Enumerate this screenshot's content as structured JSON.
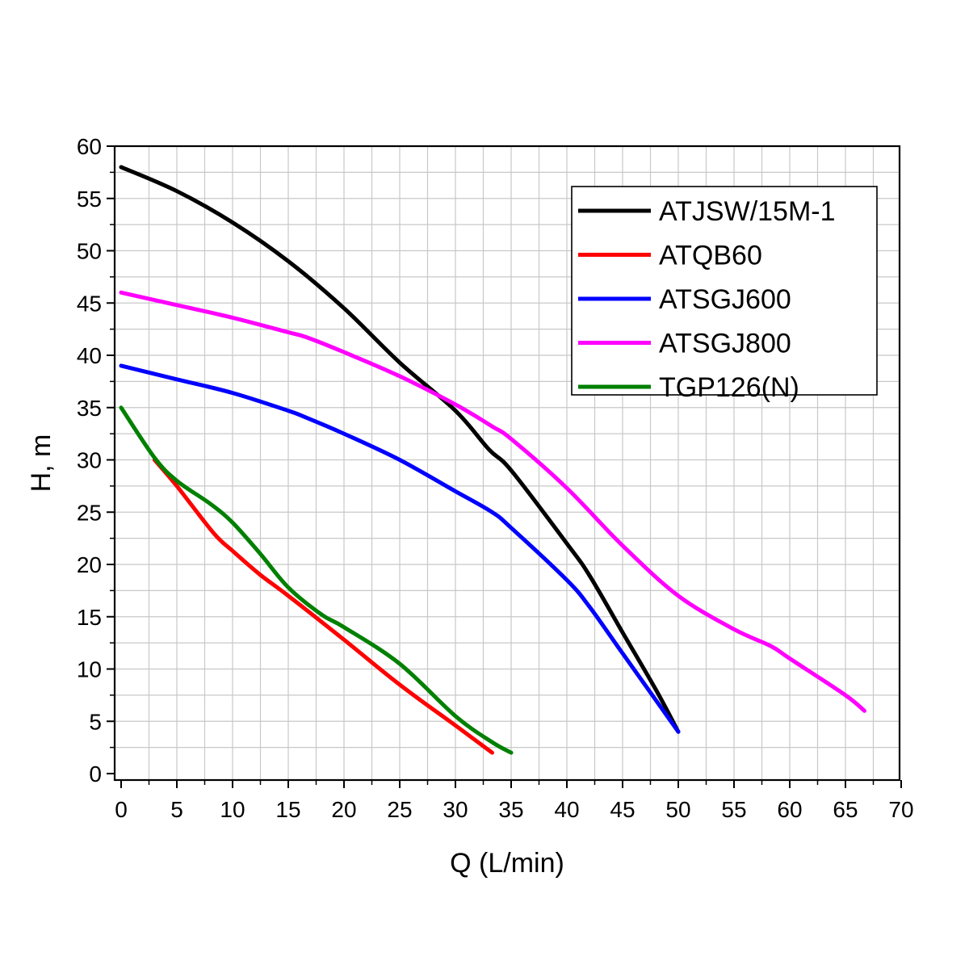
{
  "chart_data": {
    "type": "line",
    "xlabel": "Q (L/min)",
    "ylabel": "H, m",
    "xlim": [
      0,
      70
    ],
    "ylim": [
      0,
      60
    ],
    "x_ticks": [
      0,
      5,
      10,
      15,
      20,
      25,
      30,
      35,
      40,
      45,
      50,
      55,
      60,
      65,
      70
    ],
    "y_ticks": [
      0,
      5,
      10,
      15,
      20,
      25,
      30,
      35,
      40,
      45,
      50,
      55,
      60
    ],
    "grid": true,
    "legend_position": "top-right",
    "series": [
      {
        "name": "ATJSW/15M-1",
        "color": "#000000",
        "points": [
          [
            0,
            58
          ],
          [
            5,
            55.7
          ],
          [
            10,
            52.7
          ],
          [
            15,
            49
          ],
          [
            20,
            44.5
          ],
          [
            25,
            39.3
          ],
          [
            30,
            34.7
          ],
          [
            33,
            31
          ],
          [
            35,
            29
          ],
          [
            40,
            22
          ],
          [
            42,
            19
          ],
          [
            45,
            13.5
          ],
          [
            48,
            8
          ],
          [
            50,
            4
          ]
        ]
      },
      {
        "name": "ATQB60",
        "color": "#ff0000",
        "points": [
          [
            3,
            30
          ],
          [
            5,
            27.5
          ],
          [
            8.3,
            23
          ],
          [
            10,
            21.3
          ],
          [
            12.5,
            19
          ],
          [
            15,
            17
          ],
          [
            20,
            12.8
          ],
          [
            25,
            8.5
          ],
          [
            30,
            4.6
          ],
          [
            33.3,
            2
          ]
        ]
      },
      {
        "name": "ATSGJ600",
        "color": "#0000ff",
        "points": [
          [
            0,
            39
          ],
          [
            5,
            37.7
          ],
          [
            10,
            36.4
          ],
          [
            15,
            34.7
          ],
          [
            16.7,
            34
          ],
          [
            20,
            32.5
          ],
          [
            25,
            30
          ],
          [
            30,
            27
          ],
          [
            33.3,
            25
          ],
          [
            35,
            23.5
          ],
          [
            40,
            18.5
          ],
          [
            42,
            16
          ],
          [
            45,
            11.5
          ],
          [
            50,
            4
          ]
        ]
      },
      {
        "name": "ATSGJ800",
        "color": "#ff00ff",
        "points": [
          [
            0,
            46
          ],
          [
            5,
            44.8
          ],
          [
            10,
            43.6
          ],
          [
            15,
            42.2
          ],
          [
            16.7,
            41.7
          ],
          [
            20,
            40.3
          ],
          [
            25,
            38
          ],
          [
            30,
            35.3
          ],
          [
            33.3,
            33.2
          ],
          [
            35,
            32
          ],
          [
            40,
            27.3
          ],
          [
            45,
            21.8
          ],
          [
            50,
            17
          ],
          [
            55,
            13.8
          ],
          [
            58.3,
            12.2
          ],
          [
            60,
            11
          ],
          [
            65,
            7.5
          ],
          [
            66.7,
            6
          ]
        ]
      },
      {
        "name": "TGP126(N)",
        "color": "#008000",
        "points": [
          [
            0,
            35
          ],
          [
            3,
            30.2
          ],
          [
            5,
            28
          ],
          [
            8,
            25.8
          ],
          [
            10,
            24
          ],
          [
            12.5,
            21
          ],
          [
            15,
            17.8
          ],
          [
            18,
            15.2
          ],
          [
            20,
            14
          ],
          [
            25,
            10.5
          ],
          [
            30,
            5.5
          ],
          [
            33.3,
            3
          ],
          [
            35,
            2
          ]
        ]
      }
    ]
  }
}
